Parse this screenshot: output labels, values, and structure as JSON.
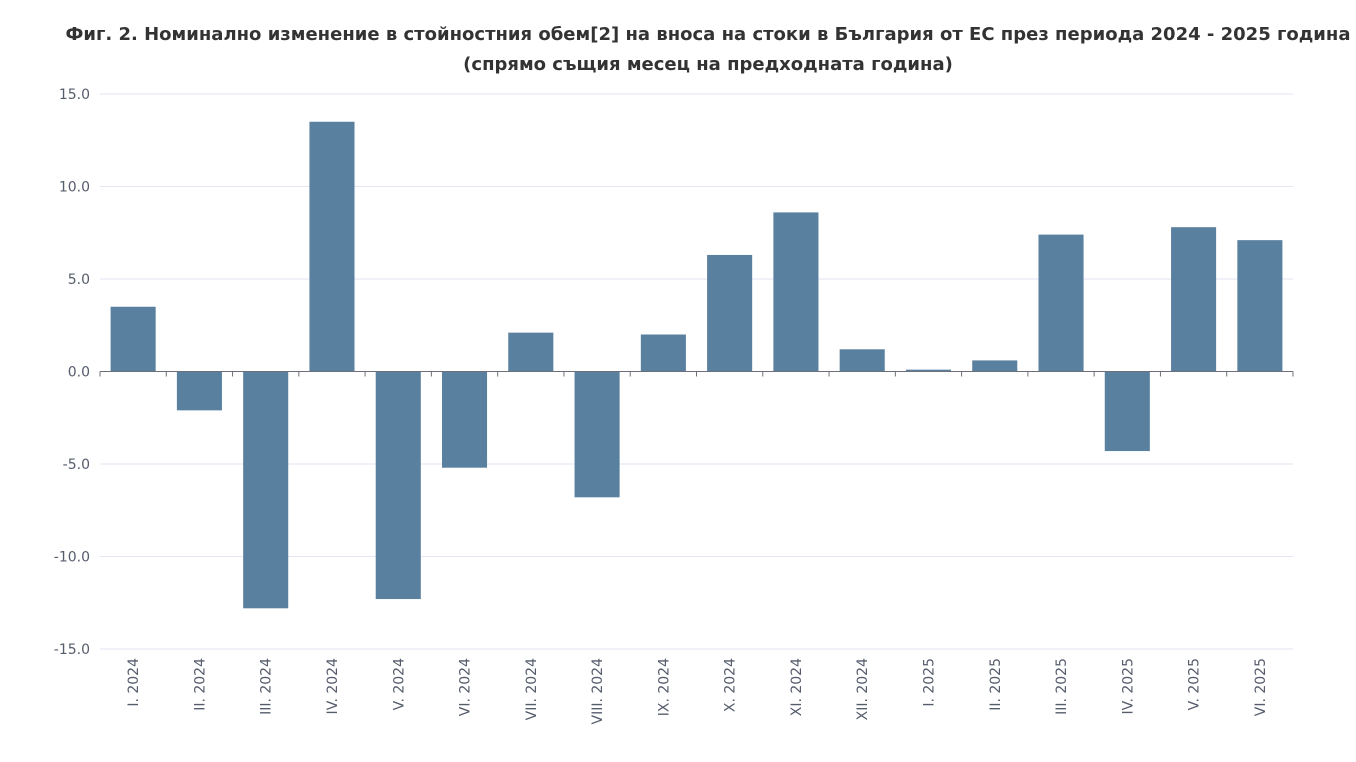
{
  "chart_data": {
    "type": "bar",
    "title": "Фиг. 2. Номинално изменение в стойностния обем[2] на вноса на стоки в България от ЕС през периода 2024 - 2025 година (спрямо същия месец на предходната година)",
    "xlabel": "",
    "ylabel": "",
    "categories": [
      "I. 2024",
      "II. 2024",
      "III. 2024",
      "IV. 2024",
      "V. 2024",
      "VI. 2024",
      "VII. 2024",
      "VIII. 2024",
      "IX. 2024",
      "X. 2024",
      "XI. 2024",
      "XII. 2024",
      "I. 2025",
      "II. 2025",
      "III. 2025",
      "IV. 2025",
      "V. 2025",
      "VI. 2025"
    ],
    "values": [
      3.5,
      -2.1,
      -12.8,
      13.5,
      -12.3,
      -5.2,
      2.1,
      -6.8,
      2.0,
      6.3,
      8.6,
      1.2,
      0.1,
      0.6,
      7.4,
      -4.3,
      7.8,
      7.1
    ],
    "ylim": [
      -15,
      15
    ],
    "yticks": [
      15,
      10,
      5,
      0,
      -5,
      -10,
      -15
    ],
    "ytick_labels": [
      "15.0",
      "10.0",
      "5.0",
      "0.0",
      "-5.0",
      "-10.0",
      "-15.0"
    ],
    "grid": true,
    "legend": "none",
    "colors": {
      "bar": "#5a809f",
      "grid": "#e3e6f3",
      "axis": "#6e7079",
      "label": "#555c6b",
      "title": "#333333"
    }
  }
}
